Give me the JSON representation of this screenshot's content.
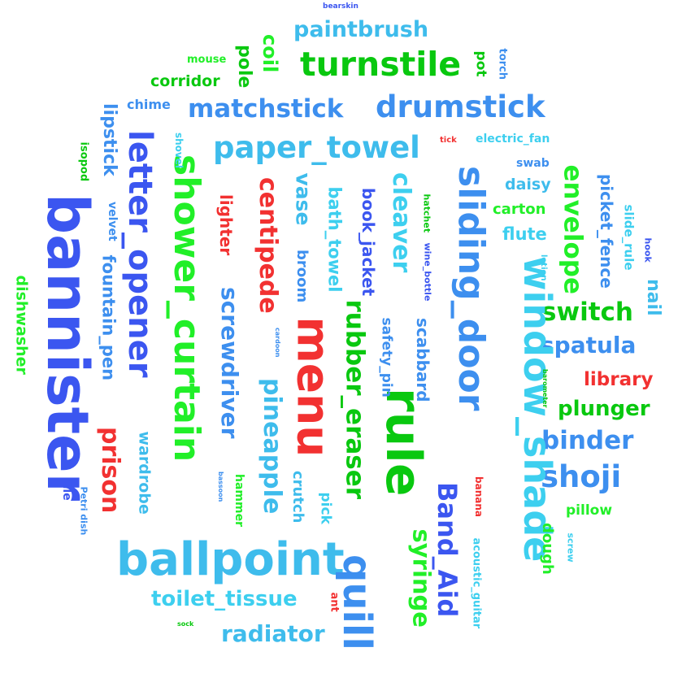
{
  "words": [
    {
      "text": "bannister",
      "color": "#3b56f0"
    },
    {
      "text": "shower_curtain",
      "color": "#21ef28"
    },
    {
      "text": "letter_opener",
      "color": "#3b56f0"
    },
    {
      "text": "menu",
      "color": "#f23131"
    },
    {
      "text": "rule",
      "color": "#09c80f"
    },
    {
      "text": "sliding_door",
      "color": "#3d8fef"
    },
    {
      "text": "window_shade",
      "color": "#3dcfef"
    },
    {
      "text": "ballpoint",
      "color": "#3ebcec"
    },
    {
      "text": "quill",
      "color": "#3d8fef"
    },
    {
      "text": "turnstile",
      "color": "#09c80f"
    },
    {
      "text": "drumstick",
      "color": "#3d8fef"
    },
    {
      "text": "matchstick",
      "color": "#3d8fef"
    },
    {
      "text": "paper_towel",
      "color": "#3ebcec"
    },
    {
      "text": "paintbrush",
      "color": "#3ebcec"
    },
    {
      "text": "rubber_eraser",
      "color": "#09c80f"
    },
    {
      "text": "Band_Aid",
      "color": "#3b56f0"
    },
    {
      "text": "syringe",
      "color": "#21ef28"
    },
    {
      "text": "pineapple",
      "color": "#3ebcec"
    },
    {
      "text": "screwdriver",
      "color": "#3d8fef"
    },
    {
      "text": "centipede",
      "color": "#f23131"
    },
    {
      "text": "cleaver",
      "color": "#3dcfef"
    },
    {
      "text": "shoji",
      "color": "#3d8fef"
    },
    {
      "text": "binder",
      "color": "#3d8fef"
    },
    {
      "text": "switch",
      "color": "#09c80f"
    },
    {
      "text": "spatula",
      "color": "#3d8fef"
    },
    {
      "text": "envelope",
      "color": "#21ef28"
    },
    {
      "text": "prison",
      "color": "#f23131"
    },
    {
      "text": "fountain_pen",
      "color": "#3d8fef"
    },
    {
      "text": "radiator",
      "color": "#3ebcec"
    },
    {
      "text": "toilet_tissue",
      "color": "#3dcfef"
    },
    {
      "text": "plunger",
      "color": "#09c80f"
    },
    {
      "text": "library",
      "color": "#f23131"
    },
    {
      "text": "vase",
      "color": "#3ebcec"
    },
    {
      "text": "coil",
      "color": "#21ef28"
    },
    {
      "text": "pole",
      "color": "#09c80f"
    },
    {
      "text": "dishwasher",
      "color": "#21ef28"
    },
    {
      "text": "lipstick",
      "color": "#3d8fef"
    },
    {
      "text": "wardrobe",
      "color": "#3ebcec"
    },
    {
      "text": "lighter",
      "color": "#f23131"
    },
    {
      "text": "bath_towel",
      "color": "#3dcfef"
    },
    {
      "text": "book_jacket",
      "color": "#3b56f0"
    },
    {
      "text": "picket_fence",
      "color": "#3d8fef"
    },
    {
      "text": "nail",
      "color": "#3ebcec"
    },
    {
      "text": "scabbard",
      "color": "#3d8fef"
    },
    {
      "text": "broom",
      "color": "#3d8fef"
    },
    {
      "text": "safety_pin",
      "color": "#3d8fef"
    },
    {
      "text": "corridor",
      "color": "#09c80f"
    },
    {
      "text": "chime",
      "color": "#3d8fef"
    },
    {
      "text": "flute",
      "color": "#3dcfef"
    },
    {
      "text": "daisy",
      "color": "#3ebcec"
    },
    {
      "text": "carton",
      "color": "#21ef28"
    },
    {
      "text": "crutch",
      "color": "#3ebcec"
    },
    {
      "text": "dough",
      "color": "#21ef28"
    },
    {
      "text": "pillow",
      "color": "#21ef28"
    },
    {
      "text": "pick",
      "color": "#3dcfef"
    },
    {
      "text": "hammer",
      "color": "#21ef28"
    },
    {
      "text": "acoustic_guitar",
      "color": "#3dcfef"
    },
    {
      "text": "mouse",
      "color": "#21ef28"
    },
    {
      "text": "pot",
      "color": "#09c80f"
    },
    {
      "text": "torch",
      "color": "#3d8fef"
    },
    {
      "text": "slide_rule",
      "color": "#3dcfef"
    },
    {
      "text": "electric_fan",
      "color": "#3dcfef"
    },
    {
      "text": "swab",
      "color": "#3d8fef"
    },
    {
      "text": "velvet",
      "color": "#3d8fef"
    },
    {
      "text": "shovel",
      "color": "#3dcfef"
    },
    {
      "text": "isopod",
      "color": "#09c80f"
    },
    {
      "text": "file",
      "color": "#3b56f0"
    },
    {
      "text": "Petri dish",
      "color": "#3d8fef"
    },
    {
      "text": "ant",
      "color": "#f23131"
    },
    {
      "text": "banana",
      "color": "#f23131"
    },
    {
      "text": "screw",
      "color": "#3dcfef"
    },
    {
      "text": "hatchet",
      "color": "#09c80f"
    },
    {
      "text": "wine_bottle",
      "color": "#3b56f0"
    },
    {
      "text": "lotion",
      "color": "#3dcfef"
    },
    {
      "text": "hook",
      "color": "#3b56f0"
    },
    {
      "text": "tick",
      "color": "#f23131"
    },
    {
      "text": "bearskin",
      "color": "#3b56f0"
    },
    {
      "text": "cardoon",
      "color": "#3d8fef"
    },
    {
      "text": "bassoon",
      "color": "#3d8fef"
    },
    {
      "text": "barometer",
      "color": "#09c80f"
    },
    {
      "text": "sock",
      "color": "#09c80f"
    }
  ]
}
